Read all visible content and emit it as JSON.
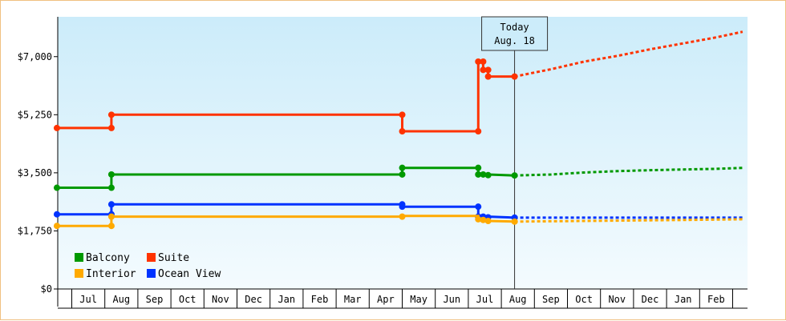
{
  "chart_data": {
    "type": "line",
    "y_ticks": [
      "$0",
      "$1,750",
      "$3,500",
      "$5,250",
      "$7,000"
    ],
    "y_tick_values": [
      0,
      1750,
      3500,
      5250,
      7000
    ],
    "ylim": [
      0,
      8200
    ],
    "x_months": [
      "Jul",
      "Aug",
      "Sep",
      "Oct",
      "Nov",
      "Dec",
      "Jan",
      "Feb",
      "Mar",
      "Apr",
      "May",
      "Jun",
      "Jul",
      "Aug",
      "Sep",
      "Oct",
      "Nov",
      "Dec",
      "Jan",
      "Feb"
    ],
    "today": {
      "line1": "Today",
      "line2": "Aug. 18",
      "x": 13.4
    },
    "grid": false,
    "legend_position": "bottom-left",
    "series": [
      {
        "name": "Suite",
        "color": "#ff3300",
        "values": [
          [
            -0.45,
            4850
          ],
          [
            1.2,
            4850
          ],
          [
            1.2,
            5250
          ],
          [
            10.0,
            5250
          ],
          [
            10.0,
            4750
          ],
          [
            12.3,
            4750
          ],
          [
            12.3,
            6850
          ],
          [
            12.45,
            6850
          ],
          [
            12.45,
            6600
          ],
          [
            12.6,
            6600
          ],
          [
            12.6,
            6400
          ],
          [
            13.4,
            6400
          ]
        ],
        "points": [
          [
            -0.45,
            4850
          ],
          [
            1.2,
            4850
          ],
          [
            1.2,
            5250
          ],
          [
            10.0,
            5250
          ],
          [
            10.0,
            4750
          ],
          [
            12.3,
            4750
          ],
          [
            12.3,
            6850
          ],
          [
            12.45,
            6850
          ],
          [
            12.45,
            6600
          ],
          [
            12.6,
            6600
          ],
          [
            12.6,
            6400
          ],
          [
            13.4,
            6400
          ]
        ],
        "forecast": [
          [
            13.4,
            6400
          ],
          [
            14.5,
            6620
          ],
          [
            15.5,
            6850
          ],
          [
            16.5,
            7020
          ],
          [
            17.5,
            7220
          ],
          [
            18.5,
            7400
          ],
          [
            19.5,
            7580
          ],
          [
            20.3,
            7750
          ]
        ]
      },
      {
        "name": "Balcony",
        "color": "#009900",
        "values": [
          [
            -0.45,
            3050
          ],
          [
            1.2,
            3050
          ],
          [
            1.2,
            3450
          ],
          [
            10.0,
            3450
          ],
          [
            10.0,
            3650
          ],
          [
            12.3,
            3650
          ],
          [
            12.3,
            3450
          ],
          [
            12.6,
            3450
          ],
          [
            13.4,
            3420
          ]
        ],
        "points": [
          [
            -0.45,
            3050
          ],
          [
            1.2,
            3050
          ],
          [
            1.2,
            3450
          ],
          [
            10.0,
            3450
          ],
          [
            10.0,
            3650
          ],
          [
            12.3,
            3650
          ],
          [
            12.3,
            3450
          ],
          [
            12.45,
            3450
          ],
          [
            12.6,
            3430
          ],
          [
            13.4,
            3420
          ]
        ],
        "forecast": [
          [
            13.4,
            3420
          ],
          [
            14.5,
            3450
          ],
          [
            15.5,
            3510
          ],
          [
            16.5,
            3550
          ],
          [
            17.5,
            3580
          ],
          [
            18.5,
            3600
          ],
          [
            19.5,
            3620
          ],
          [
            20.3,
            3650
          ]
        ]
      },
      {
        "name": "Ocean View",
        "color": "#0033ff",
        "values": [
          [
            -0.45,
            2250
          ],
          [
            1.2,
            2250
          ],
          [
            1.2,
            2550
          ],
          [
            10.0,
            2550
          ],
          [
            10.0,
            2480
          ],
          [
            12.3,
            2480
          ],
          [
            12.3,
            2180
          ],
          [
            12.6,
            2180
          ],
          [
            13.4,
            2150
          ]
        ],
        "points": [
          [
            -0.45,
            2250
          ],
          [
            1.2,
            2250
          ],
          [
            1.2,
            2550
          ],
          [
            10.0,
            2550
          ],
          [
            10.0,
            2480
          ],
          [
            12.3,
            2480
          ],
          [
            12.3,
            2180
          ],
          [
            12.45,
            2180
          ],
          [
            12.6,
            2160
          ],
          [
            13.4,
            2150
          ]
        ],
        "forecast": [
          [
            13.4,
            2150
          ],
          [
            20.3,
            2150
          ]
        ]
      },
      {
        "name": "Interior",
        "color": "#ffaa00",
        "values": [
          [
            -0.45,
            1900
          ],
          [
            1.2,
            1900
          ],
          [
            1.2,
            2180
          ],
          [
            10.0,
            2180
          ],
          [
            10.0,
            2200
          ],
          [
            12.3,
            2200
          ],
          [
            12.3,
            2100
          ],
          [
            12.6,
            2050
          ],
          [
            13.4,
            2030
          ]
        ],
        "points": [
          [
            -0.45,
            1900
          ],
          [
            1.2,
            1900
          ],
          [
            1.2,
            2180
          ],
          [
            10.0,
            2180
          ],
          [
            12.3,
            2100
          ],
          [
            12.45,
            2080
          ],
          [
            12.6,
            2050
          ],
          [
            13.4,
            2030
          ]
        ],
        "forecast": [
          [
            13.4,
            2030
          ],
          [
            14.5,
            2040
          ],
          [
            16.5,
            2060
          ],
          [
            18.5,
            2080
          ],
          [
            20.3,
            2100
          ]
        ]
      }
    ],
    "legend": [
      {
        "name": "Balcony",
        "color": "#009900"
      },
      {
        "name": "Suite",
        "color": "#ff3300"
      },
      {
        "name": "Interior",
        "color": "#ffaa00"
      },
      {
        "name": "Ocean View",
        "color": "#0033ff"
      }
    ]
  }
}
